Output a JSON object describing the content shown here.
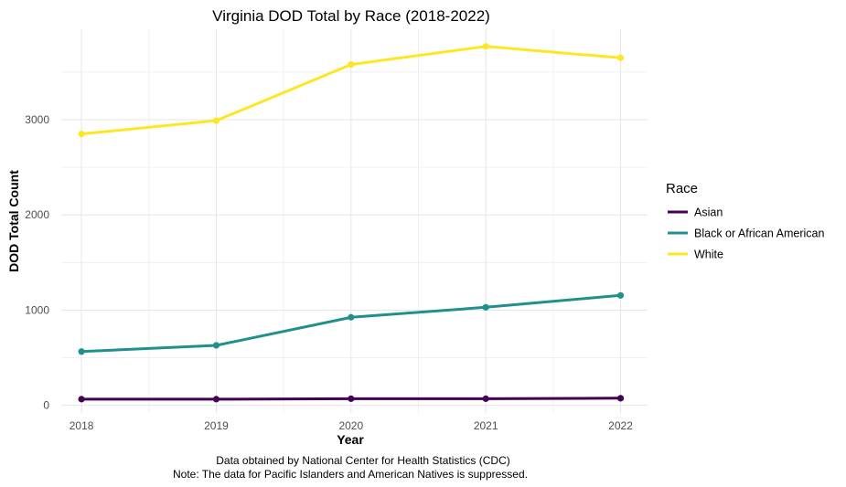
{
  "chart_data": {
    "type": "line",
    "title": "Virginia DOD Total by Race (2018-2022)",
    "xlabel": "Year",
    "ylabel": "DOD Total Count",
    "x": [
      2018,
      2019,
      2020,
      2021,
      2022
    ],
    "xlim": [
      2017.85,
      2022.2
    ],
    "ylim": [
      -80,
      3950
    ],
    "yticks": [
      0,
      1000,
      2000,
      3000
    ],
    "grid": true,
    "legend_title": "Race",
    "legend_position": "right",
    "series": [
      {
        "name": "Asian",
        "color": "#440154",
        "values": [
          65,
          65,
          70,
          70,
          75
        ]
      },
      {
        "name": "Black or African American",
        "color": "#21908C",
        "values": [
          565,
          630,
          925,
          1030,
          1155
        ]
      },
      {
        "name": "White",
        "color": "#FDE725",
        "values": [
          2850,
          2990,
          3580,
          3770,
          3650
        ]
      }
    ],
    "caption_lines": [
      "Data obtained by National Center for Health Statistics (CDC)",
      "Note: The data for Pacific Islanders and American Natives is suppressed."
    ]
  }
}
